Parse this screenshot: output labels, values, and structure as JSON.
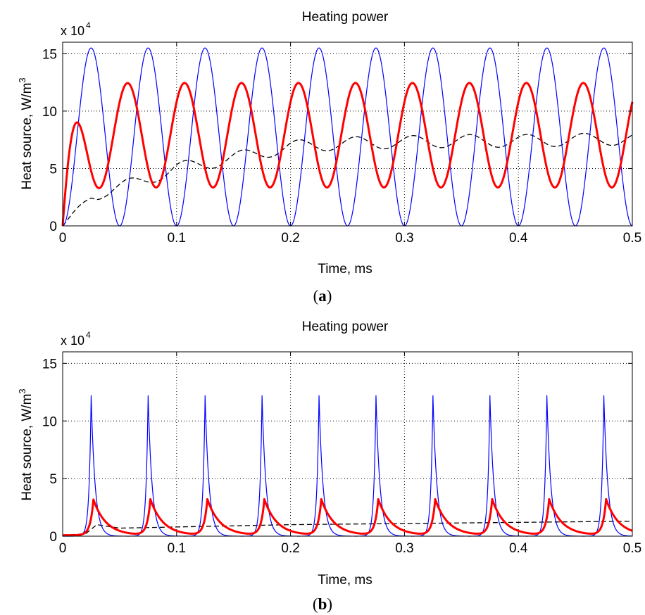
{
  "colors": {
    "blue": "#0000ff",
    "red": "#ff0000",
    "black": "#000000",
    "grid": "#000000"
  },
  "chart_data": [
    {
      "type": "line",
      "title": "Heating power",
      "xlabel": "Time, ms",
      "ylabel": "Heat source, W/m",
      "ylabel_sup": "3",
      "y_multiplier": "x 10",
      "y_multiplier_exp": "4",
      "panel_label": "a",
      "xlim": [
        0,
        0.5
      ],
      "ylim": [
        0,
        16
      ],
      "xticks": [
        0,
        0.1,
        0.2,
        0.3,
        0.4,
        0.5
      ],
      "xtick_labels": [
        "0",
        "0.1",
        "0.2",
        "0.3",
        "0.4",
        "0.5"
      ],
      "yticks": [
        0,
        5,
        10,
        15
      ],
      "ytick_labels": [
        "0",
        "5",
        "10",
        "15"
      ],
      "grid": true,
      "series": [
        {
          "color": "#0000ff",
          "style": "solid-thin",
          "shape": "sin2",
          "peak": 15.5,
          "period": 0.05,
          "first_peak": 0.025
        },
        {
          "color": "#ff0000",
          "style": "solid-thick",
          "shape": "lagged-sine",
          "mean": 7.9,
          "amplitude": 4.55,
          "period": 0.05,
          "first_peak": 0.032,
          "first_trough": 0.056,
          "first_trough_value": 3.0
        },
        {
          "color": "#000000",
          "style": "dashed",
          "shape": "rising-ripple",
          "final": 7.45,
          "ripple": 0.55,
          "period": 0.05,
          "samples_x": [
            0,
            0.025,
            0.05,
            0.1,
            0.15,
            0.2,
            0.25,
            0.3,
            0.35,
            0.4,
            0.45,
            0.5
          ],
          "samples_y": [
            0,
            2.7,
            3.3,
            5.0,
            5.9,
            6.9,
            7.2,
            7.3,
            7.4,
            7.4,
            7.5,
            7.6
          ]
        }
      ]
    },
    {
      "type": "line",
      "title": "Heating power",
      "xlabel": "Time, ms",
      "ylabel": "Heat source, W/m",
      "ylabel_sup": "3",
      "y_multiplier": "x 10",
      "y_multiplier_exp": "4",
      "panel_label": "b",
      "xlim": [
        0,
        0.5
      ],
      "ylim": [
        0,
        16
      ],
      "xticks": [
        0,
        0.1,
        0.2,
        0.3,
        0.4,
        0.5
      ],
      "xtick_labels": [
        "0",
        "0.1",
        "0.2",
        "0.3",
        "0.4",
        "0.5"
      ],
      "yticks": [
        0,
        5,
        10,
        15
      ],
      "ytick_labels": [
        "0",
        "5",
        "10",
        "15"
      ],
      "grid": true,
      "series": [
        {
          "color": "#0000ff",
          "style": "solid-thin",
          "shape": "spikes",
          "peak": 12.2,
          "period": 0.05,
          "first_peak": 0.025,
          "decay": 0.0035
        },
        {
          "color": "#ff0000",
          "style": "solid-thick",
          "shape": "shark-fin",
          "peak": 3.4,
          "baseline": 0.4,
          "period": 0.05,
          "first_peak": 0.027,
          "decay": 0.011
        },
        {
          "color": "#000000",
          "style": "dashed",
          "shape": "slow-rise",
          "samples_x": [
            0,
            0.02,
            0.03,
            0.05,
            0.1,
            0.2,
            0.3,
            0.4,
            0.5
          ],
          "samples_y": [
            0.1,
            0.2,
            1.0,
            0.7,
            0.8,
            1.0,
            1.1,
            1.2,
            1.3
          ]
        }
      ]
    }
  ]
}
